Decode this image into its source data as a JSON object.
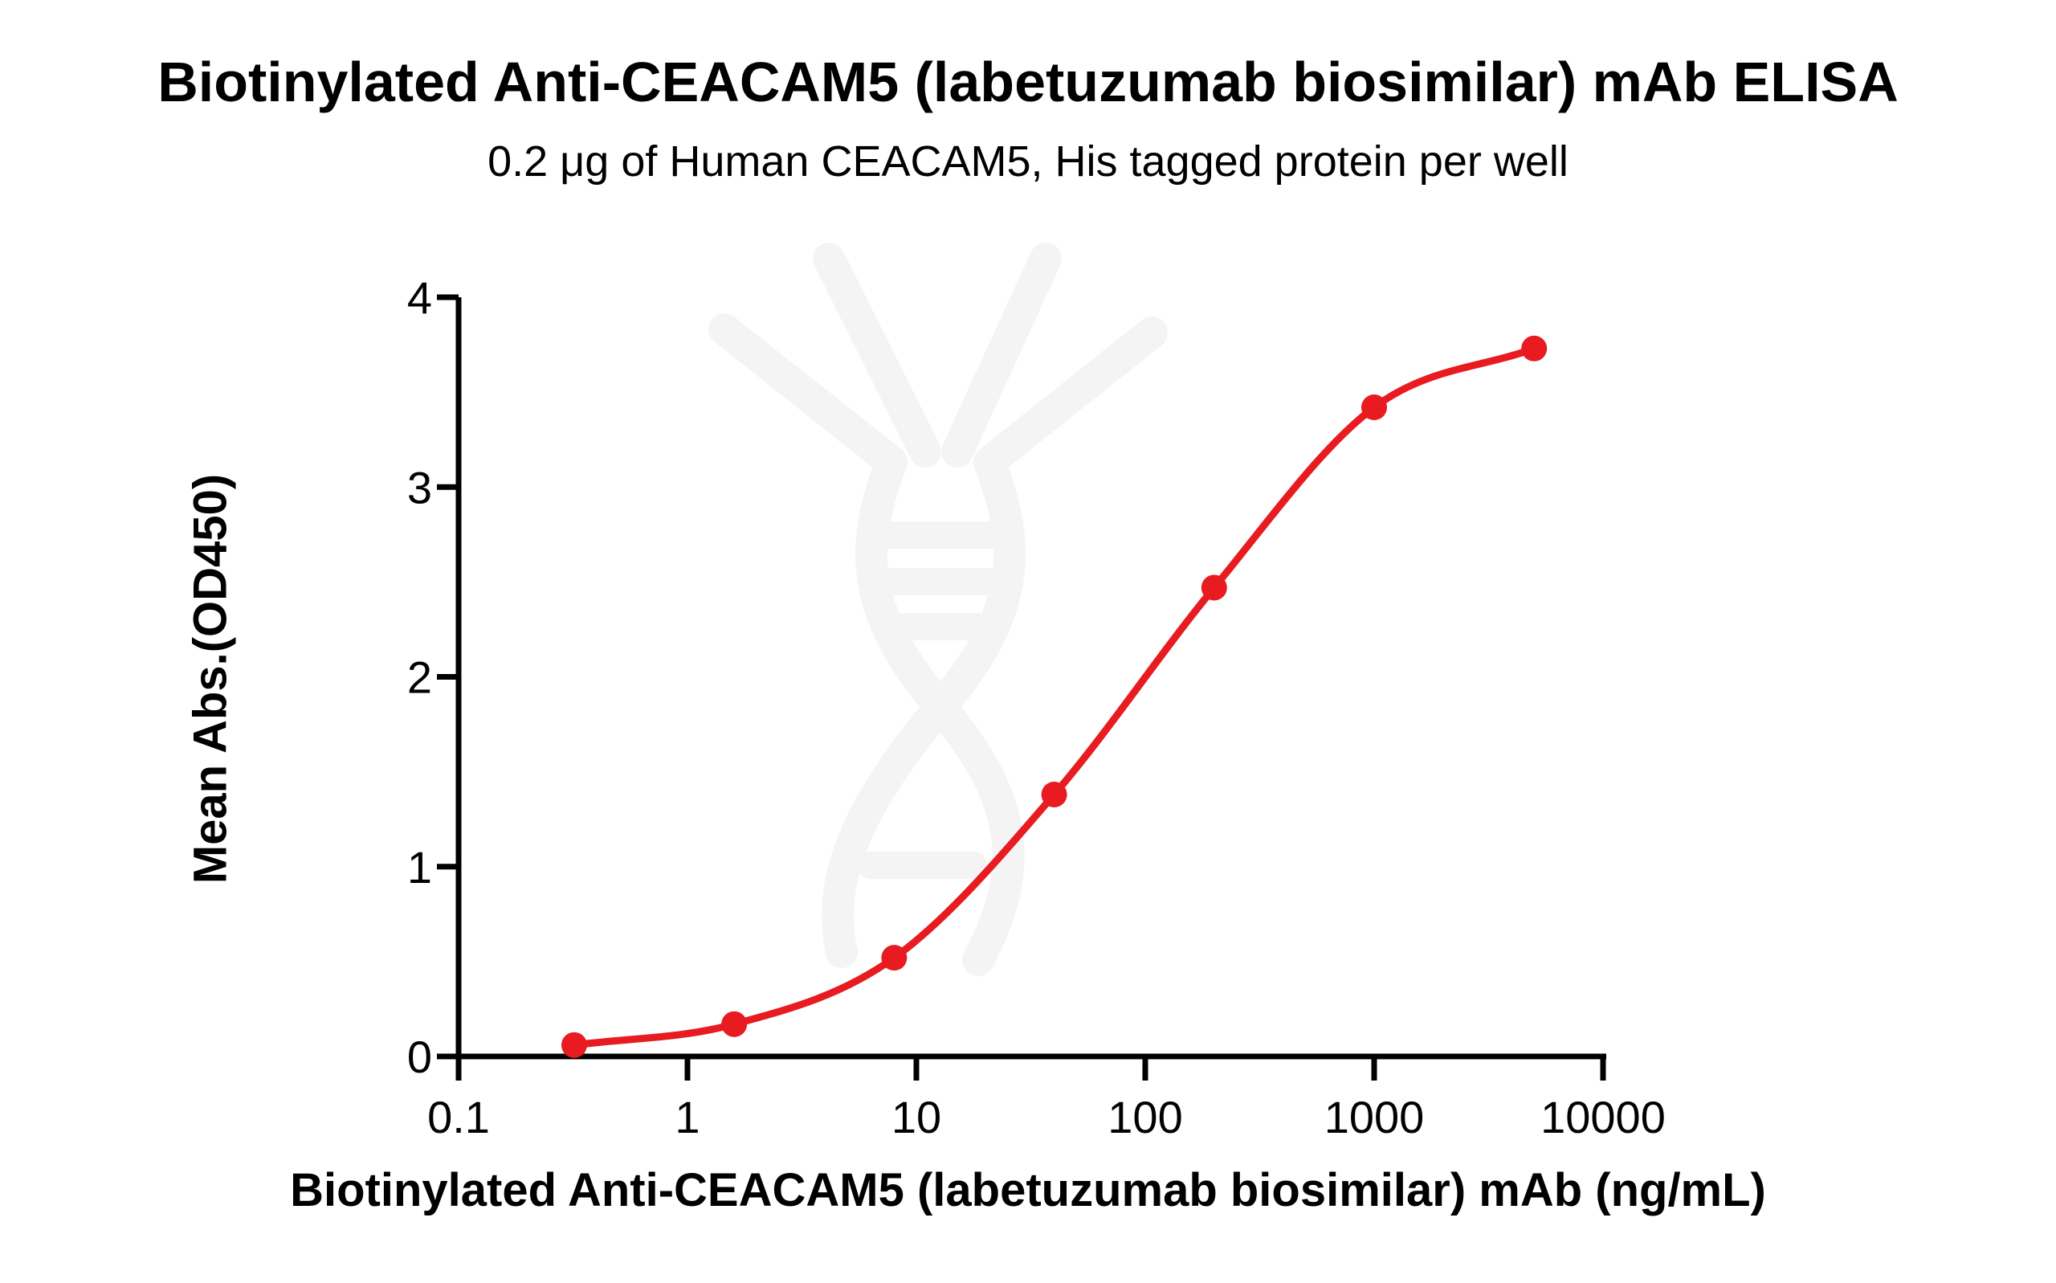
{
  "header": {
    "title": "Biotinylated Anti-CEACAM5 (labetuzumab biosimilar) mAb ELISA",
    "subtitle": "0.2 μg of Human CEACAM5, His tagged protein per well"
  },
  "chart_data": {
    "type": "scatter",
    "curve_fit": "4PL sigmoidal dose-response curve through points",
    "title": "Biotinylated Anti-CEACAM5 (labetuzumab biosimilar) mAb ELISA",
    "subtitle": "0.2 μg of Human CEACAM5, His tagged protein per well",
    "xlabel": "Biotinylated Anti-CEACAM5 (labetuzumab biosimilar) mAb (ng/mL)",
    "ylabel": "Mean Abs.(OD450)",
    "x_scale": "log10",
    "xlim": [
      0.1,
      10000
    ],
    "ylim": [
      0,
      4
    ],
    "x": [
      0.32,
      1.6,
      8,
      40,
      200,
      1000,
      5000
    ],
    "y": [
      0.06,
      0.17,
      0.52,
      1.38,
      2.47,
      3.42,
      3.73
    ],
    "x_tick_values": [
      0.1,
      1,
      10,
      100,
      1000,
      10000
    ],
    "x_tick_labels": [
      "0.1",
      "1",
      "10",
      "100",
      "1000",
      "10000"
    ],
    "y_tick_values": [
      0,
      1,
      2,
      3,
      4
    ],
    "y_tick_labels": [
      "0",
      "1",
      "2",
      "3",
      "4"
    ],
    "grid": false,
    "legend": "none",
    "marker": "filled-circle",
    "colors": {
      "series": "#e81b21",
      "axis": "#000000",
      "text": "#000000",
      "watermark": "#f4f4f4"
    },
    "watermark": "faint dna-double-helix with antibody-like unwound arms, centered in plot"
  }
}
